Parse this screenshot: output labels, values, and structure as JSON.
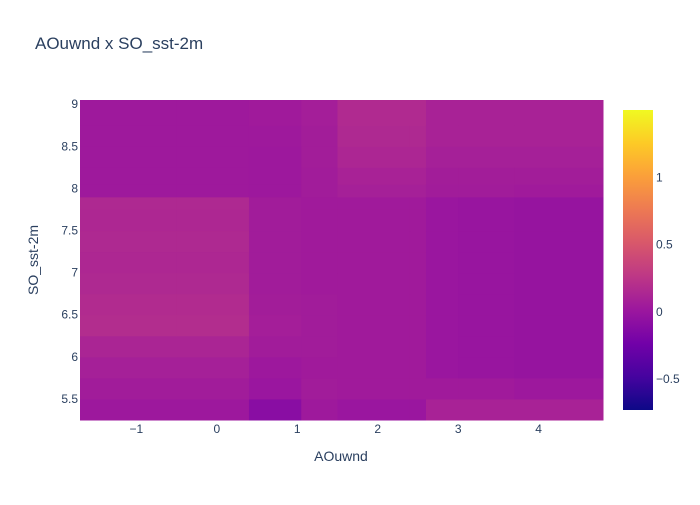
{
  "chart_data": {
    "type": "heatmap",
    "title": "AOuwnd x SO_sst-2m",
    "xlabel": "AOuwnd",
    "ylabel": "SO_sst-2m",
    "x_ticks": [
      "−1",
      "0",
      "1",
      "2",
      "3",
      "4"
    ],
    "x_tick_values": [
      -1,
      0,
      1,
      2,
      3,
      4
    ],
    "y_ticks": [
      "5.5",
      "6",
      "6.5",
      "7",
      "7.5",
      "8",
      "8.5",
      "9"
    ],
    "y_tick_values": [
      5.5,
      6,
      6.5,
      7,
      7.5,
      8,
      8.5,
      9
    ],
    "xlim": [
      -1.7,
      4.8
    ],
    "ylim": [
      5.25,
      9.05
    ],
    "colorbar": {
      "range": [
        -0.73,
        1.5
      ],
      "ticks": [
        "−0.5",
        "0",
        "0.5",
        "1"
      ],
      "tick_values": [
        -0.5,
        0,
        0.5,
        1
      ],
      "colorscale": [
        "#0d0887",
        "#46039f",
        "#7201a8",
        "#9c179e",
        "#bd3786",
        "#d8576b",
        "#ed7953",
        "#fb9f3a",
        "#fdca26",
        "#f0f921"
      ]
    },
    "x_edges": [
      -1.7,
      -0.5,
      0.4,
      1.05,
      1.5,
      2.4,
      2.6,
      3.0,
      3.7,
      4.8
    ],
    "y_edges": [
      5.25,
      5.5,
      5.75,
      6.0,
      6.25,
      6.5,
      6.75,
      7.0,
      7.25,
      7.5,
      7.75,
      7.9,
      8.05,
      8.25,
      8.5,
      8.75,
      9.05
    ],
    "z": [
      [
        0.02,
        0.02,
        -0.1,
        0.03,
        0.0,
        0.0,
        0.1,
        0.1,
        0.1
      ],
      [
        0.05,
        0.05,
        0.0,
        0.05,
        0.04,
        0.04,
        0.04,
        0.04,
        0.02
      ],
      [
        0.08,
        0.08,
        0.02,
        0.04,
        0.04,
        0.04,
        0.0,
        -0.01,
        -0.02
      ],
      [
        0.12,
        0.12,
        0.05,
        0.05,
        0.04,
        0.04,
        0.0,
        -0.01,
        -0.02
      ],
      [
        0.18,
        0.18,
        0.07,
        0.05,
        0.04,
        0.04,
        0.0,
        -0.01,
        -0.02
      ],
      [
        0.17,
        0.17,
        0.06,
        0.05,
        0.04,
        0.04,
        0.0,
        -0.01,
        -0.02
      ],
      [
        0.15,
        0.15,
        0.05,
        0.04,
        0.04,
        0.04,
        0.0,
        -0.01,
        -0.02
      ],
      [
        0.14,
        0.14,
        0.05,
        0.04,
        0.04,
        0.04,
        0.0,
        -0.01,
        -0.02
      ],
      [
        0.15,
        0.15,
        0.05,
        0.04,
        0.04,
        0.04,
        0.0,
        -0.01,
        -0.02
      ],
      [
        0.14,
        0.14,
        0.05,
        0.04,
        0.04,
        0.04,
        0.0,
        -0.01,
        -0.02
      ],
      [
        0.15,
        0.15,
        0.05,
        0.04,
        0.04,
        0.04,
        0.0,
        -0.01,
        -0.02
      ],
      [
        0.03,
        0.03,
        0.02,
        0.05,
        0.08,
        0.08,
        0.05,
        0.05,
        0.04
      ],
      [
        0.03,
        0.03,
        0.02,
        0.05,
        0.1,
        0.1,
        0.06,
        0.06,
        0.06
      ],
      [
        0.03,
        0.03,
        0.02,
        0.06,
        0.13,
        0.13,
        0.08,
        0.08,
        0.08
      ],
      [
        0.03,
        0.03,
        0.03,
        0.06,
        0.15,
        0.15,
        0.1,
        0.1,
        0.1
      ],
      [
        0.03,
        0.03,
        0.04,
        0.07,
        0.16,
        0.16,
        0.1,
        0.1,
        0.1
      ]
    ]
  }
}
